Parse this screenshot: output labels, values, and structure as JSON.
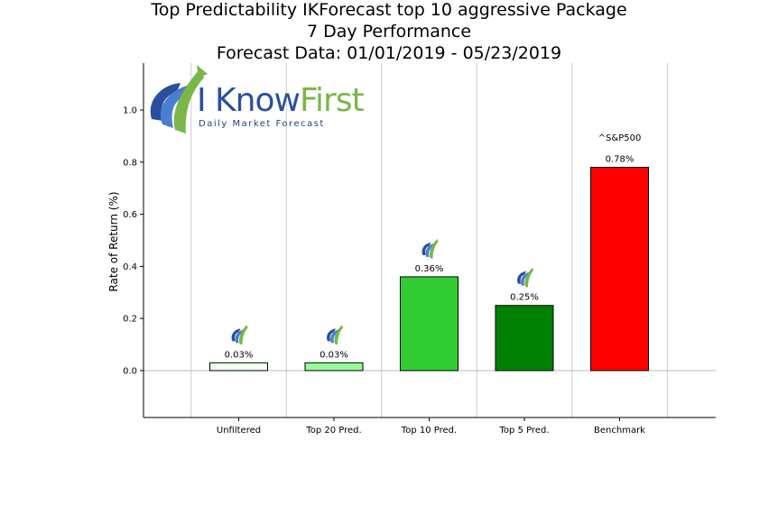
{
  "chart_data": {
    "type": "bar",
    "title_lines": [
      "Top Predictability IKForecast top 10 aggressive Package",
      "7 Day Performance",
      "Forecast Data: 01/01/2019 - 05/23/2019"
    ],
    "xlabel": "",
    "ylabel": "Rate of Return (%)",
    "ylim": [
      -0.18,
      1.18
    ],
    "yticks": [
      "0.0",
      "0.2",
      "0.4",
      "0.6",
      "0.8",
      "1.0"
    ],
    "grid": "vertical",
    "categories": [
      "Unfiltered",
      "Top 20 Pred.",
      "Top 10 Pred.",
      "Top 5 Pred.",
      "Benchmark"
    ],
    "values": [
      0.03,
      0.03,
      0.36,
      0.25,
      0.78
    ],
    "data_labels": [
      "0.03%",
      "0.03%",
      "0.36%",
      "0.25%",
      "0.78%"
    ],
    "bar_colors": [
      "#f0fff0",
      "#98fb98",
      "#32cd32",
      "#008000",
      "#ff0000"
    ],
    "benchmark_annotation": "^S&P500"
  },
  "logo": {
    "word_part1": "I Know",
    "word_part2": "First",
    "tagline": "Daily Market Forecast",
    "colors": {
      "blue": "#2a4f9c",
      "green": "#7ab648"
    }
  }
}
